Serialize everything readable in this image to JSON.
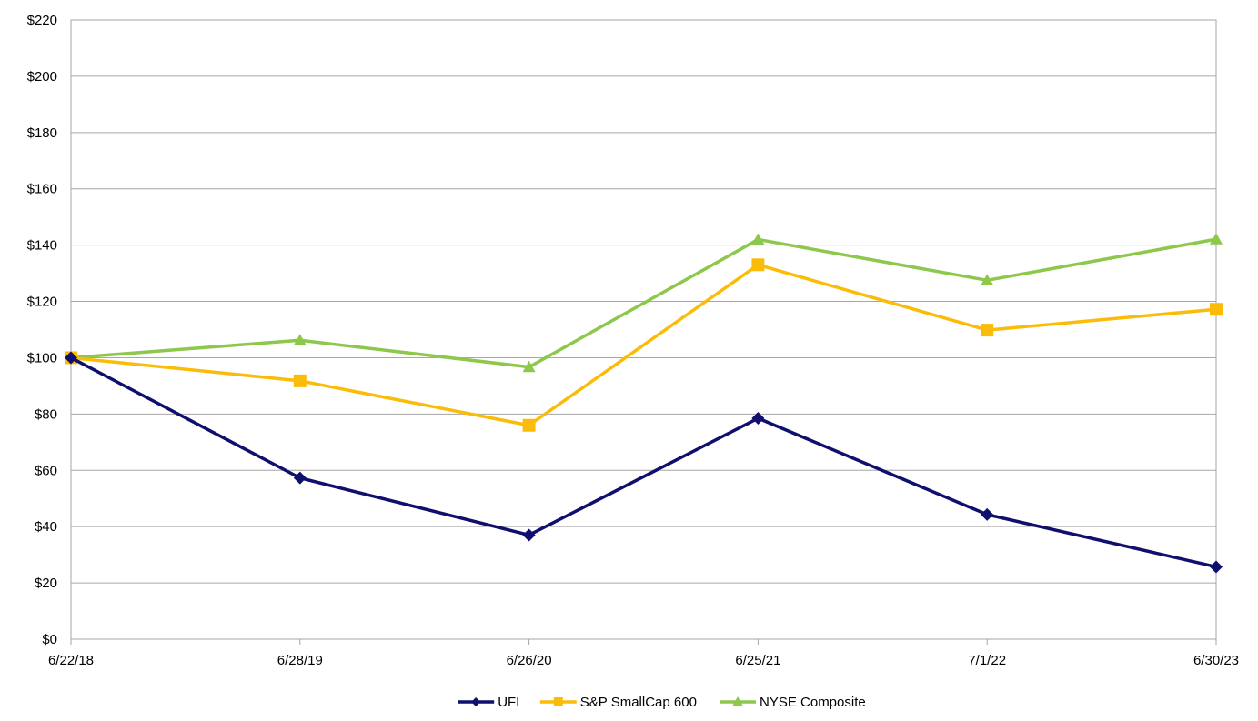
{
  "chart_data": {
    "type": "line",
    "categories": [
      "6/22/18",
      "6/28/19",
      "6/26/20",
      "6/25/21",
      "7/1/22",
      "6/30/23"
    ],
    "y_ticks": [
      "$0",
      "$20",
      "$40",
      "$60",
      "$80",
      "$100",
      "$120",
      "$140",
      "$160",
      "$180",
      "$200",
      "$220"
    ],
    "ylim": [
      0,
      220
    ],
    "grid": true,
    "legend_position": "bottom",
    "series": [
      {
        "name": "UFI",
        "color": "#0f0f6e",
        "marker": "diamond",
        "values": [
          100,
          57.3,
          37,
          78.5,
          44.3,
          25.7
        ]
      },
      {
        "name": "S&P SmallCap 600",
        "color": "#fbbc09",
        "marker": "square",
        "values": [
          100,
          91.8,
          76,
          133,
          109.8,
          117.2
        ]
      },
      {
        "name": "NYSE Composite",
        "color": "#8dc74c",
        "marker": "triangle",
        "values": [
          100,
          106.2,
          96.7,
          142,
          127.5,
          142.1
        ]
      }
    ]
  }
}
